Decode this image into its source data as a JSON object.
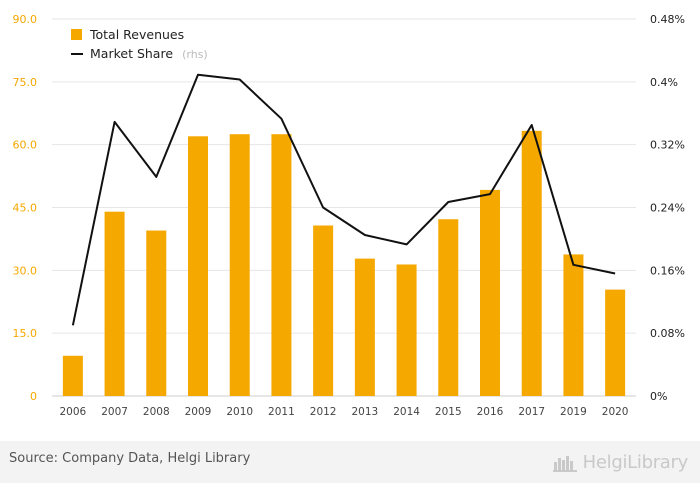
{
  "chart_data": {
    "type": "bar",
    "categories": [
      "2006",
      "2007",
      "2008",
      "2009",
      "2010",
      "2011",
      "2012",
      "2013",
      "2014",
      "2015",
      "2016",
      "2017",
      "2019",
      "2020"
    ],
    "series": [
      {
        "name": "Total Revenues",
        "type": "bar",
        "axis": "left",
        "color": "#f5a800",
        "values": [
          9.6,
          44.0,
          39.5,
          62.0,
          62.5,
          62.5,
          40.7,
          32.8,
          31.4,
          42.2,
          49.2,
          63.3,
          33.8,
          25.4
        ]
      },
      {
        "name": "Market Share",
        "type": "line",
        "axis": "right",
        "color": "#111111",
        "values": [
          0.0009,
          0.00349,
          0.00279,
          0.00409,
          0.00403,
          0.00353,
          0.0024,
          0.00205,
          0.00193,
          0.00247,
          0.00257,
          0.00345,
          0.00167,
          0.00156
        ]
      }
    ],
    "legend": [
      {
        "label": "Total Revenues",
        "suffix": "",
        "marker": "square"
      },
      {
        "label": "Market Share",
        "suffix": "(rhs)",
        "marker": "line"
      }
    ],
    "y_left": {
      "range": [
        0,
        90
      ],
      "ticks": [
        0,
        15,
        30,
        45,
        60,
        75,
        90
      ],
      "tick_labels": [
        "0",
        "15.0",
        "30.0",
        "45.0",
        "60.0",
        "75.0",
        "90.0"
      ]
    },
    "y_right": {
      "range": [
        0,
        0.0048
      ],
      "ticks": [
        0,
        0.0008,
        0.0016,
        0.0024,
        0.0032,
        0.004,
        0.0048
      ],
      "tick_labels": [
        "0%",
        "0.08%",
        "0.16%",
        "0.24%",
        "0.32%",
        "0.4%",
        "0.48%"
      ]
    },
    "grid": true,
    "legend_position": "top-left"
  },
  "footer": {
    "source": "Source: Company Data, Helgi Library",
    "brand": "HelgiLibrary",
    "brand_icon": "helgi-library-logo-icon",
    "background": "#f3f3f3"
  }
}
